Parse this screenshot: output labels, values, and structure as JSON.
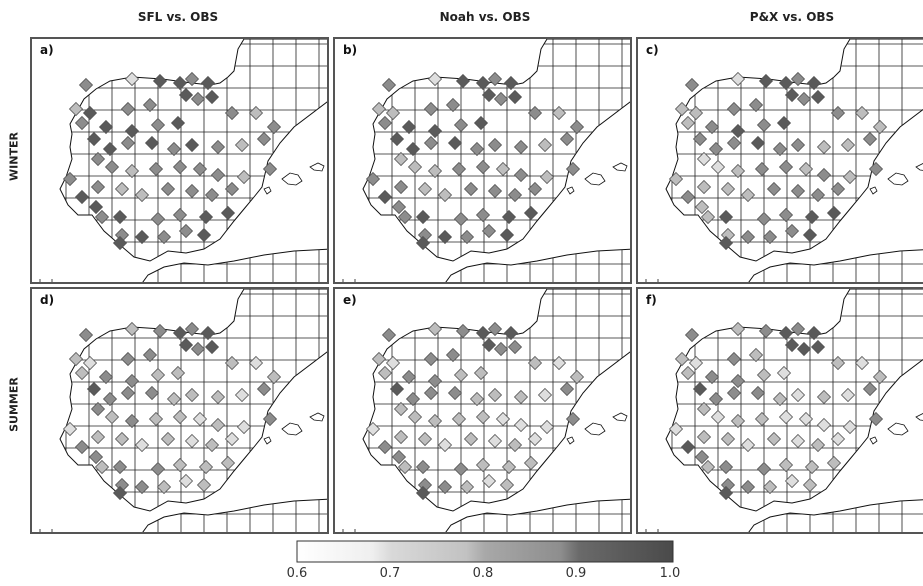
{
  "columns": [
    "SFL vs. OBS",
    "Noah vs. OBS",
    "P&X vs. OBS"
  ],
  "rows": [
    "WINTER",
    "SUMMER"
  ],
  "panel_labels": [
    "a)",
    "b)",
    "c)",
    "d)",
    "e)",
    "f)"
  ],
  "colorbar": {
    "ticks": [
      "0.6",
      "0.7",
      "0.8",
      "0.9",
      "1.0"
    ],
    "min": 0.6,
    "max": 1.0,
    "classes": [
      {
        "from": 0.6,
        "to": 0.7,
        "color": "#f2f2f2"
      },
      {
        "from": 0.7,
        "to": 0.8,
        "color": "#c7c7c7"
      },
      {
        "from": 0.8,
        "to": 0.9,
        "color": "#969696"
      },
      {
        "from": 0.9,
        "to": 1.0,
        "color": "#555555"
      }
    ]
  }
}
